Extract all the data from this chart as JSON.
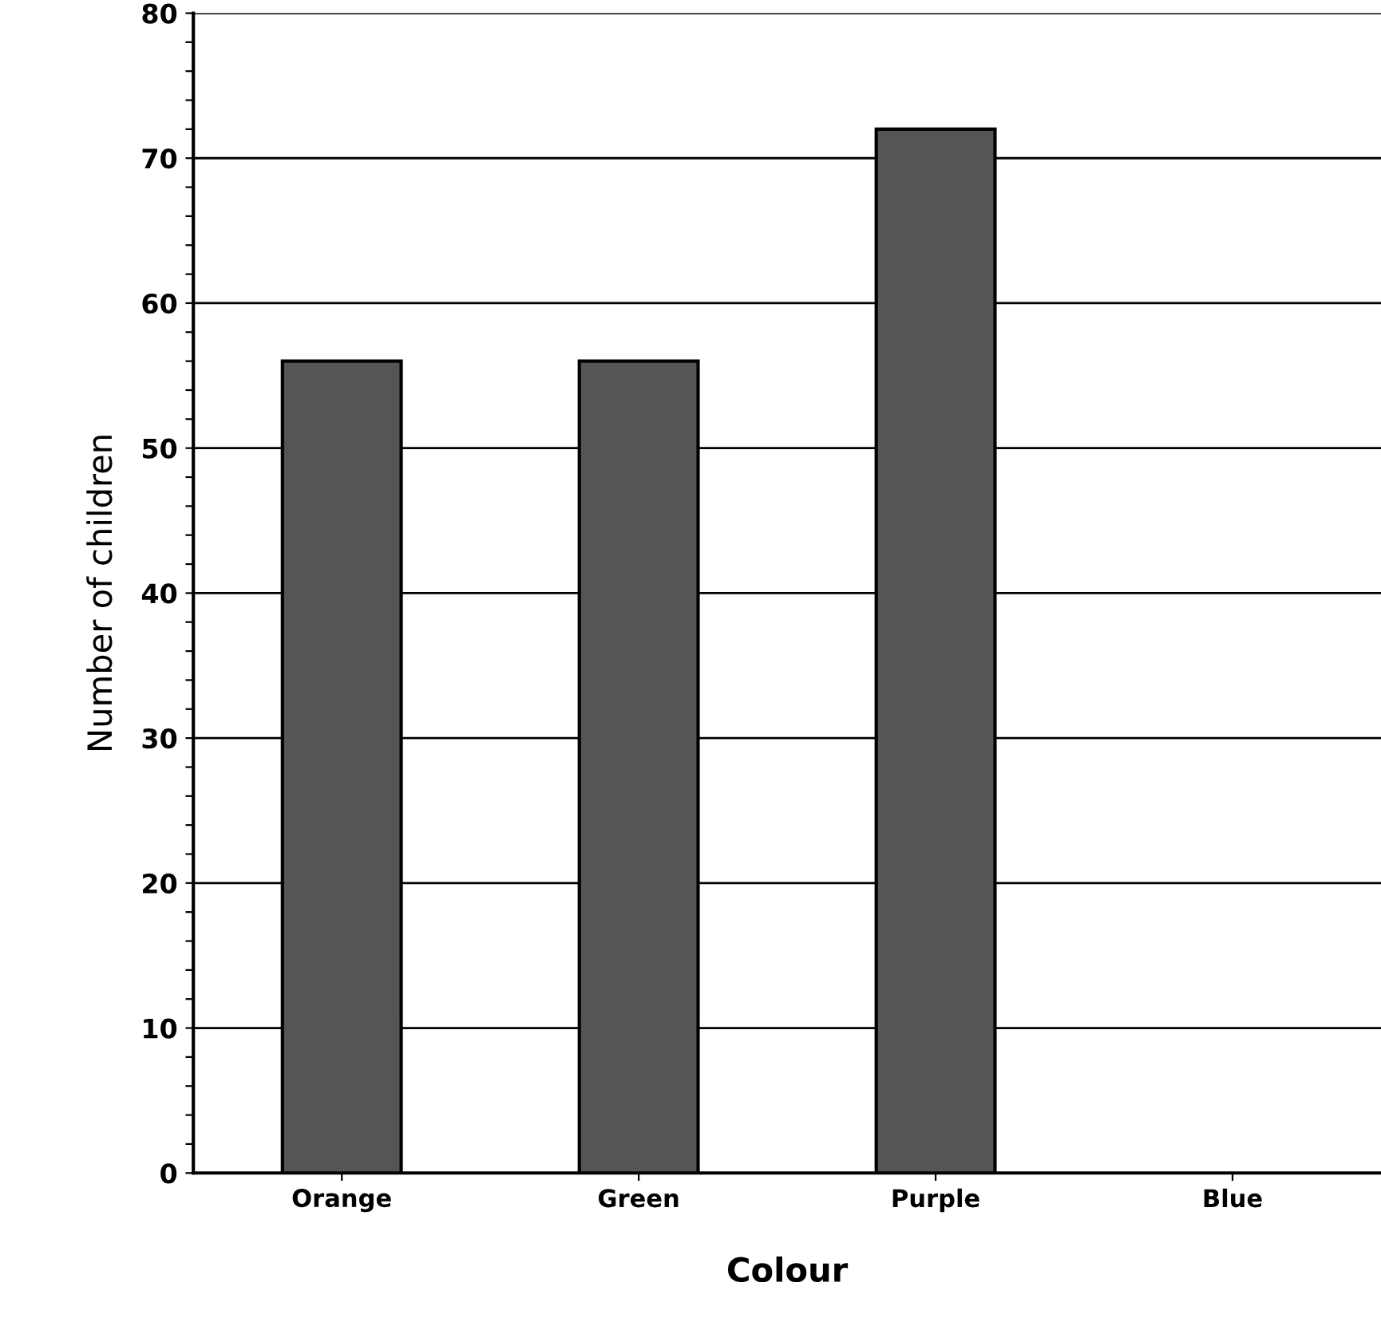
{
  "chart_data": {
    "type": "bar",
    "xlabel": "Colour",
    "ylabel": "Number of children",
    "categories": [
      "Orange",
      "Green",
      "Purple",
      "Blue"
    ],
    "values": [
      56,
      56,
      72,
      null
    ],
    "color": "#555555",
    "ylim": [
      0,
      80
    ],
    "yticks": [
      0,
      {
        "value": 2,
        "label": null
      },
      {
        "value": 4,
        "label": null
      },
      {
        "value": 6,
        "label": null
      },
      {
        "value": 8,
        "label": null
      },
      10,
      {
        "value": 12,
        "label": null
      },
      {
        "value": 14,
        "label": null
      },
      {
        "value": 16,
        "label": null
      },
      {
        "value": 18,
        "label": null
      },
      20,
      {
        "value": 22,
        "label": null
      },
      {
        "value": 24,
        "label": null
      },
      {
        "value": 26,
        "label": null
      },
      {
        "value": 28,
        "label": null
      },
      30,
      {
        "value": 32,
        "label": null
      },
      {
        "value": 34,
        "label": null
      },
      {
        "value": 36,
        "label": null
      },
      {
        "value": 38,
        "label": null
      },
      40,
      {
        "value": 42,
        "label": null
      },
      {
        "value": 44,
        "label": null
      },
      {
        "value": 46,
        "label": null
      },
      {
        "value": 48,
        "label": null
      },
      50,
      {
        "value": 52,
        "label": null
      },
      {
        "value": 54,
        "label": null
      },
      {
        "value": 56,
        "label": null
      },
      {
        "value": 58,
        "label": null
      },
      60,
      {
        "value": 62,
        "label": null
      },
      {
        "value": 64,
        "label": null
      },
      {
        "value": 66,
        "label": null
      },
      {
        "value": 68,
        "label": null
      },
      70,
      {
        "value": 72,
        "label": null
      },
      {
        "value": 74,
        "label": null
      },
      {
        "value": 76,
        "label": null
      },
      {
        "value": 78,
        "label": null
      },
      80
    ],
    "grid": "y"
  }
}
